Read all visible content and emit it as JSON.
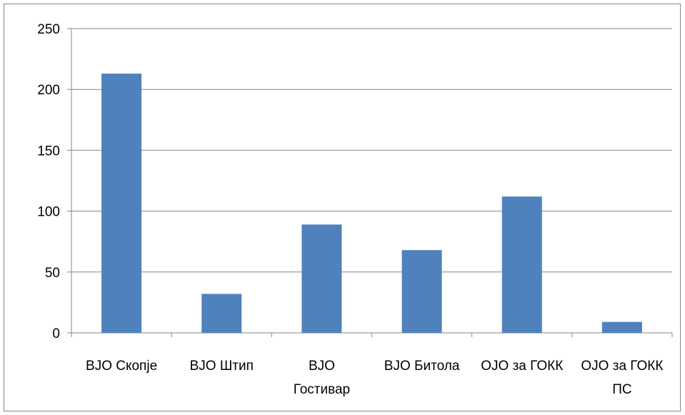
{
  "chart_data": {
    "type": "bar",
    "categories": [
      [
        "ВЈО Скопје"
      ],
      [
        "ВЈО Штип"
      ],
      [
        "ВЈО",
        "Гостивар"
      ],
      [
        "ВЈО Битола"
      ],
      [
        "ОЈО за ГОКК"
      ],
      [
        "ОЈО за ГОКК",
        "ПС"
      ]
    ],
    "values": [
      213,
      32,
      89,
      68,
      112,
      9
    ],
    "ylim": [
      0,
      250
    ],
    "yticks": [
      0,
      50,
      100,
      150,
      200,
      250
    ],
    "title": "",
    "xlabel": "",
    "ylabel": "",
    "grid": true,
    "legend": "none",
    "colors": {
      "bar": "#4F81BD",
      "grid": "#868686",
      "axis": "#868686"
    }
  }
}
